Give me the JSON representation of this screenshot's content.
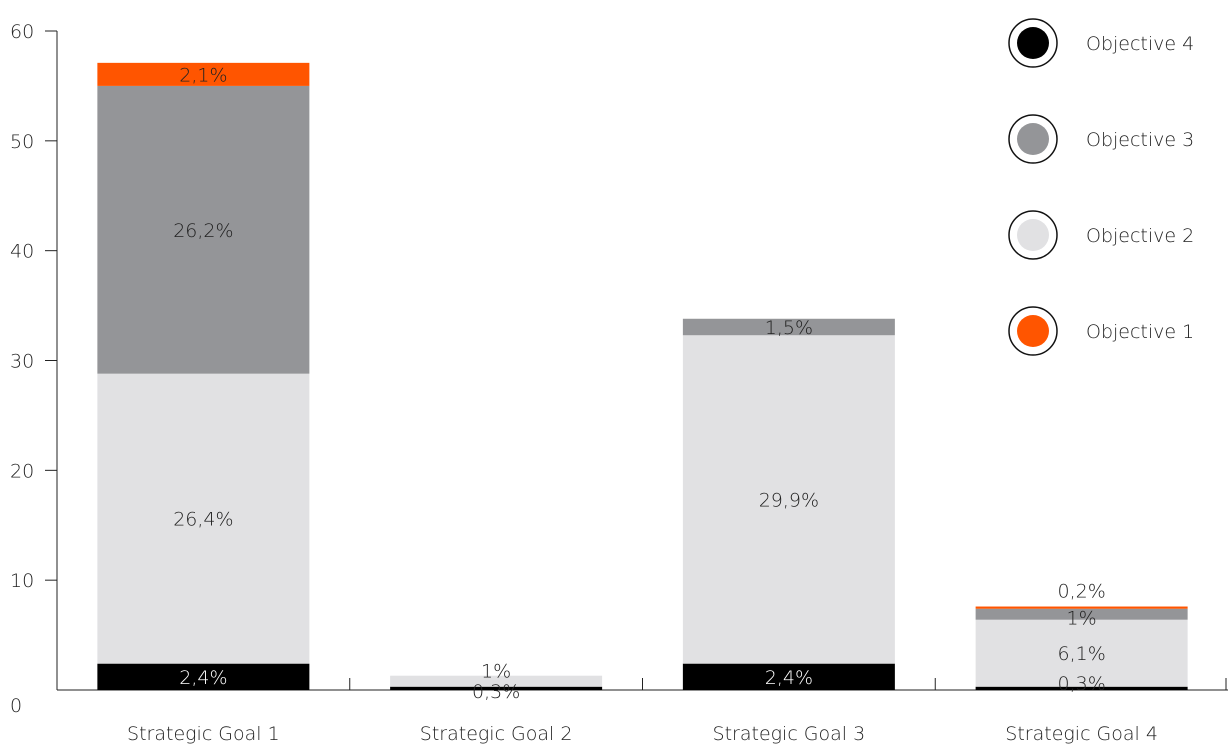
{
  "chart_data": {
    "type": "bar",
    "stacked": true,
    "categories": [
      "Strategic Goal 1",
      "Strategic Goal 2",
      "Strategic Goal 3",
      "Strategic Goal 4"
    ],
    "ylim": [
      0,
      60
    ],
    "yticks": [
      0,
      10,
      20,
      30,
      40,
      50,
      60
    ],
    "series": [
      {
        "name": "Objective 4",
        "color": "#000000",
        "values": [
          2.4,
          0.3,
          2.4,
          0.3
        ],
        "labels": [
          "2,4%",
          "0,3%",
          "2,4%",
          "0,3%"
        ]
      },
      {
        "name": "Objective 2",
        "color": "#e1e1e3",
        "values": [
          26.4,
          1,
          29.9,
          6.1
        ],
        "labels": [
          "26,4%",
          "1%",
          "29,9%",
          "6,1%"
        ]
      },
      {
        "name": "Objective 3",
        "color": "#949598",
        "values": [
          26.2,
          0,
          1.5,
          1
        ],
        "labels": [
          "26,2%",
          "",
          "1,5%",
          "1%"
        ]
      },
      {
        "name": "Objective 1",
        "color": "#ff5500",
        "values": [
          2.1,
          0,
          0,
          0.2
        ],
        "labels": [
          "2,1%",
          "",
          "",
          "0,2%"
        ]
      }
    ],
    "legend": {
      "position": "top-right",
      "order": [
        "Objective 4",
        "Objective 3",
        "Objective 2",
        "Objective 1"
      ]
    },
    "grid": false
  }
}
